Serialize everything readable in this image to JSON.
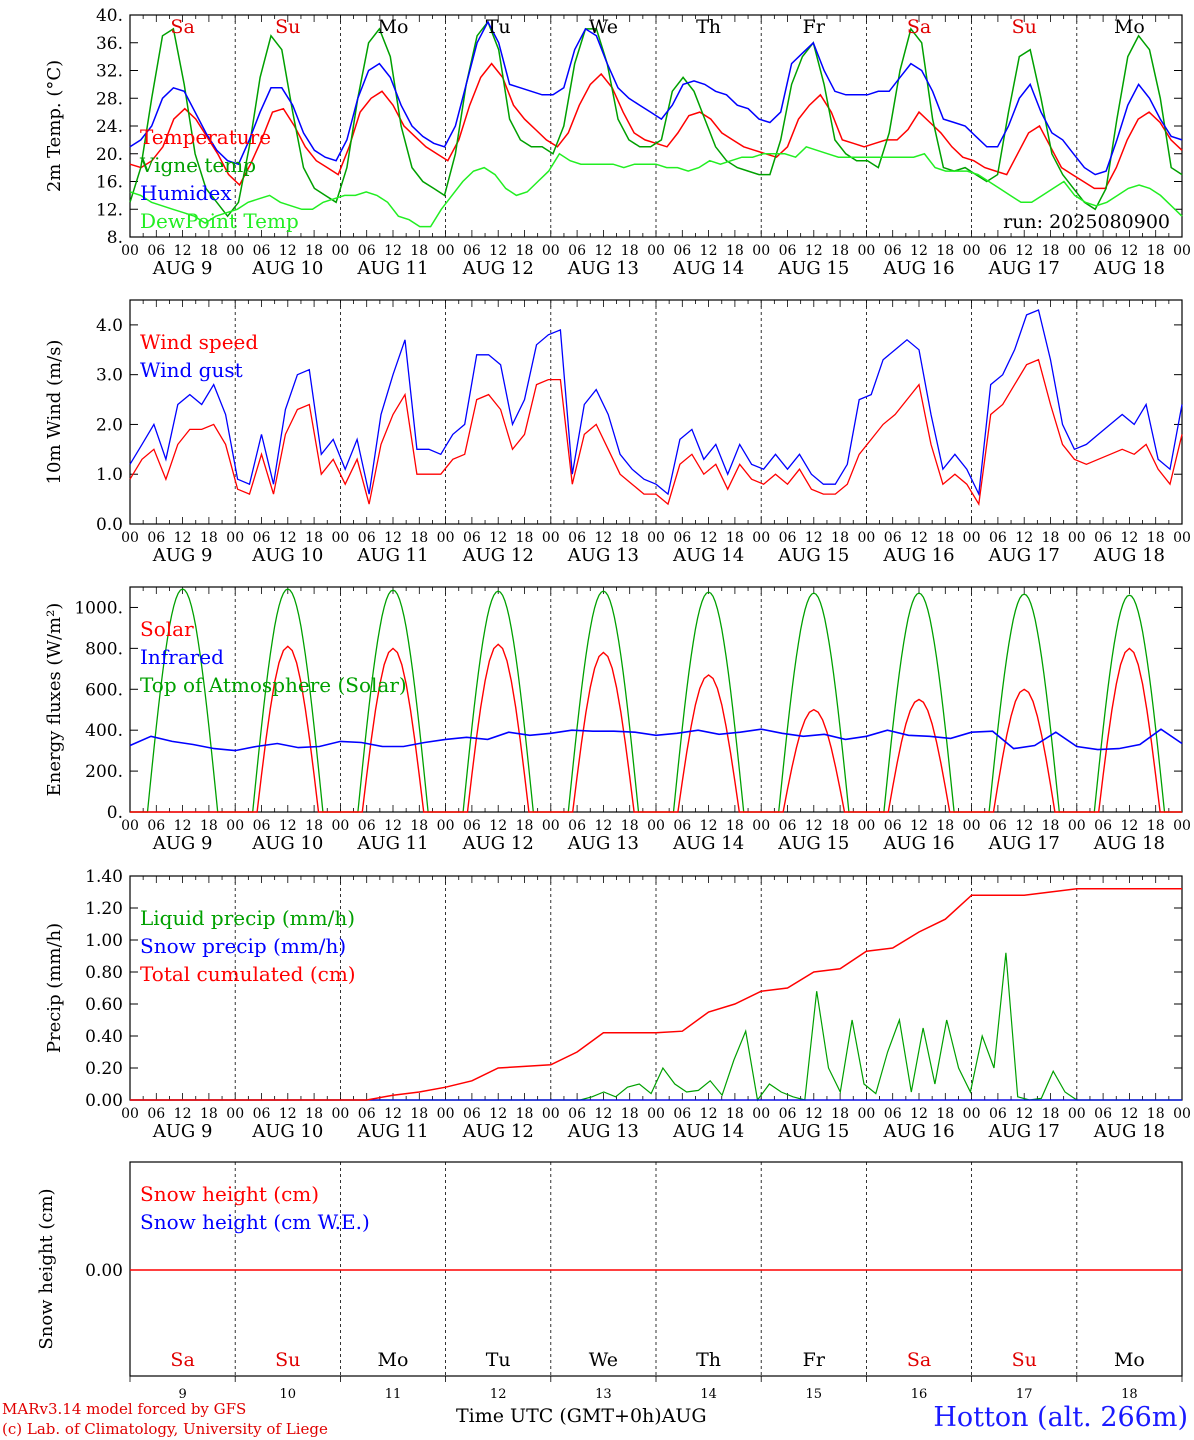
{
  "chart_data": [
    {
      "type": "line",
      "ylabel": "2m Temp. (°C)",
      "ylim": [
        8,
        40
      ],
      "yticks": [
        "8.",
        "12.",
        "16.",
        "20.",
        "24.",
        "28.",
        "32.",
        "36.",
        "40."
      ],
      "annotation": "run: 2025080900",
      "day_labels": [
        "Sa",
        "Su",
        "Mo",
        "Tu",
        "We",
        "Th",
        "Fr",
        "Sa",
        "Su",
        "Mo"
      ],
      "x_hours": "0..240 every 6h (Aug 9 00 UTC to Aug 19 00 UTC)",
      "series": [
        {
          "name": "Temperature",
          "color": "#ff0000",
          "values": [
            18.5,
            18,
            19,
            21,
            25,
            26.5,
            25,
            22.5,
            20,
            17,
            15.5,
            18.5,
            22,
            26,
            26.5,
            24,
            21,
            19,
            18,
            17,
            21,
            26,
            28,
            29,
            27,
            24,
            22.5,
            21,
            20,
            19,
            22,
            27,
            31,
            33,
            31,
            27,
            25,
            23.5,
            22,
            21,
            23,
            27,
            30,
            31.5,
            29.5,
            26,
            23,
            22,
            21.5,
            21,
            23,
            25.5,
            26,
            25,
            23,
            22,
            21,
            20.5,
            20,
            19.5,
            21,
            25,
            27,
            28.5,
            26,
            22,
            21.5,
            21,
            21.5,
            22,
            22,
            23.5,
            26,
            24.5,
            23,
            21,
            19.5,
            19,
            18,
            17.5,
            17,
            20,
            23,
            24,
            21,
            18,
            17,
            16,
            15,
            15,
            18,
            22,
            25,
            26,
            24.5,
            22,
            20.5
          ]
        },
        {
          "name": "Vigne temp",
          "color": "#00a000",
          "values": [
            13,
            18,
            28,
            37,
            38,
            30,
            20,
            15,
            13,
            11,
            13,
            21,
            31,
            37,
            35,
            26,
            18,
            15,
            14,
            13,
            18,
            28,
            36,
            38,
            34,
            24,
            18,
            16,
            15,
            14,
            20,
            30,
            37,
            39,
            35,
            25,
            22,
            21,
            21,
            20,
            24,
            33,
            38,
            38,
            33,
            25,
            22,
            21,
            21,
            22,
            29,
            31,
            29,
            25,
            21,
            19,
            18,
            17.5,
            17,
            17,
            22,
            30,
            34,
            36,
            30,
            22,
            20,
            19,
            19,
            18,
            23,
            32,
            38,
            36,
            25,
            18,
            17.5,
            18,
            17,
            16,
            17,
            26,
            34,
            35,
            28,
            20,
            17,
            15,
            13,
            12,
            15,
            25,
            34,
            37,
            35,
            28,
            18,
            17
          ]
        },
        {
          "name": "Humidex",
          "color": "#0000ff",
          "values": [
            21,
            22,
            24,
            28,
            29.5,
            29,
            26,
            23,
            20.5,
            19,
            18.5,
            22,
            26,
            29.5,
            29.5,
            27,
            23,
            20.5,
            19.5,
            19,
            22,
            28,
            32,
            33,
            31,
            27,
            24,
            22.5,
            21.5,
            21,
            24,
            30,
            36,
            39,
            36,
            30,
            29.5,
            29,
            28.5,
            28.5,
            29.5,
            35,
            38,
            37,
            33,
            29.5,
            28,
            27,
            26,
            25,
            27,
            30,
            30.5,
            30,
            29,
            28.5,
            27,
            26.5,
            25,
            24.5,
            26,
            33,
            34.5,
            36,
            32,
            29,
            28.5,
            28.5,
            28.5,
            29,
            29,
            31,
            33,
            32,
            29,
            25,
            24.5,
            24,
            22.5,
            21,
            21,
            24,
            28,
            30,
            26,
            23,
            22,
            20,
            18,
            17,
            17.5,
            22,
            27,
            30,
            28,
            25,
            22.5,
            22
          ]
        },
        {
          "name": "DewPoint Temp",
          "color": "#22ee22",
          "values": [
            14.5,
            14,
            13,
            12.5,
            12,
            11.5,
            11,
            10,
            11,
            11.5,
            12,
            13,
            13.5,
            14,
            13,
            12.5,
            12,
            12,
            13,
            13.5,
            14,
            14,
            14.5,
            14,
            13,
            11,
            10.5,
            9.5,
            9.5,
            12,
            14,
            16,
            17.5,
            18,
            17,
            15,
            14,
            14.5,
            16,
            17.5,
            20,
            19,
            18.5,
            18.5,
            18.5,
            18.5,
            18,
            18.5,
            18.5,
            18.5,
            18,
            18,
            17.5,
            18,
            19,
            18.5,
            19,
            19.5,
            19.5,
            20,
            20,
            20,
            19.5,
            21,
            20.5,
            20,
            19.5,
            19.5,
            19.5,
            19.5,
            19.5,
            19.5,
            19.5,
            19.5,
            20,
            18,
            17.5,
            17.5,
            17.5,
            17,
            16,
            15,
            14,
            13,
            13,
            14,
            15,
            16,
            14,
            13,
            12.5,
            13,
            14,
            15,
            15.5,
            15,
            14,
            12.5,
            11
          ]
        }
      ]
    },
    {
      "type": "line",
      "ylabel": "10m Wind (m/s)",
      "ylim": [
        0,
        4.5
      ],
      "yticks": [
        "0.0",
        "1.0",
        "2.0",
        "3.0",
        "4.0"
      ],
      "series": [
        {
          "name": "Wind speed",
          "color": "#ff0000",
          "values": [
            0.9,
            1.3,
            1.5,
            0.9,
            1.6,
            1.9,
            1.9,
            2.0,
            1.6,
            0.7,
            0.6,
            1.4,
            0.6,
            1.8,
            2.3,
            2.4,
            1.0,
            1.3,
            0.8,
            1.3,
            0.4,
            1.6,
            2.2,
            2.6,
            1.0,
            1.0,
            1.0,
            1.3,
            1.4,
            2.5,
            2.6,
            2.3,
            1.5,
            1.8,
            2.8,
            2.9,
            2.9,
            0.8,
            1.8,
            2.0,
            1.5,
            1.0,
            0.8,
            0.6,
            0.6,
            0.4,
            1.2,
            1.4,
            1.0,
            1.2,
            0.7,
            1.2,
            0.9,
            0.8,
            1.0,
            0.8,
            1.1,
            0.7,
            0.6,
            0.6,
            0.8,
            1.4,
            1.7,
            2.0,
            2.2,
            2.5,
            2.8,
            1.6,
            0.8,
            1.0,
            0.8,
            0.4,
            2.2,
            2.4,
            2.8,
            3.2,
            3.3,
            2.4,
            1.6,
            1.3,
            1.2,
            1.3,
            1.4,
            1.5,
            1.4,
            1.6,
            1.1,
            0.8,
            1.8
          ]
        },
        {
          "name": "Wind gust",
          "color": "#0000ff",
          "values": [
            1.2,
            1.6,
            2.0,
            1.3,
            2.4,
            2.6,
            2.4,
            2.8,
            2.2,
            0.9,
            0.8,
            1.8,
            0.8,
            2.3,
            3.0,
            3.1,
            1.4,
            1.7,
            1.1,
            1.7,
            0.6,
            2.2,
            3.0,
            3.7,
            1.5,
            1.5,
            1.4,
            1.8,
            2.0,
            3.4,
            3.4,
            3.2,
            2.0,
            2.5,
            3.6,
            3.8,
            3.9,
            1.0,
            2.4,
            2.7,
            2.2,
            1.4,
            1.1,
            0.9,
            0.8,
            0.6,
            1.7,
            1.9,
            1.3,
            1.6,
            1.0,
            1.6,
            1.2,
            1.1,
            1.4,
            1.1,
            1.4,
            1.0,
            0.8,
            0.8,
            1.2,
            2.5,
            2.6,
            3.3,
            3.5,
            3.7,
            3.5,
            2.2,
            1.1,
            1.4,
            1.1,
            0.6,
            2.8,
            3.0,
            3.5,
            4.2,
            4.3,
            3.3,
            2.0,
            1.5,
            1.6,
            1.8,
            2.0,
            2.2,
            2.0,
            2.4,
            1.3,
            1.1,
            2.4
          ]
        }
      ]
    },
    {
      "type": "line",
      "ylabel": "Energy fluxes (W/m²)",
      "ylim": [
        0,
        1100
      ],
      "yticks": [
        "0.",
        "200.",
        "400.",
        "600.",
        "800.",
        "1000."
      ],
      "series": [
        {
          "name": "Solar",
          "color": "#ff0000",
          "values": [
            0,
            0,
            0,
            100,
            790,
            810,
            780,
            800,
            790,
            820,
            800,
            800,
            780,
            760,
            700,
            670,
            600,
            440,
            500,
            470,
            480,
            550,
            480,
            400,
            330,
            580,
            600,
            770,
            800,
            780
          ],
          "note": "daily peak values per day, Aug 9..18 (Wh plotted as half-sine)"
        },
        {
          "name": "Infrared",
          "color": "#0000ff",
          "values": [
            325,
            370,
            345,
            330,
            310,
            300,
            320,
            335,
            315,
            320,
            345,
            340,
            320,
            320,
            340,
            355,
            365,
            355,
            390,
            375,
            385,
            400,
            395,
            395,
            390,
            375,
            385,
            400,
            380,
            390,
            405,
            385,
            370,
            380,
            355,
            370,
            400,
            375,
            370,
            360,
            390,
            395,
            310,
            325,
            390,
            320,
            305,
            310,
            330,
            405,
            335
          ]
        },
        {
          "name": "Top of Atmosphere (Solar)",
          "color": "#00a000",
          "values": [
            1090,
            1090,
            1085,
            1080,
            1080,
            1075,
            1070,
            1070,
            1065,
            1060
          ]
        }
      ]
    },
    {
      "type": "line",
      "ylabel": "Precip (mm/h)",
      "ylim": [
        0,
        1.4
      ],
      "yticks": [
        "0.00",
        "0.20",
        "0.40",
        "0.60",
        "0.80",
        "1.00",
        "1.20",
        "1.40"
      ],
      "series": [
        {
          "name": "Liquid precip (mm/h)",
          "color": "#00a000",
          "values": [
            0,
            0,
            0.02,
            0.05,
            0.02,
            0.08,
            0.1,
            0.04,
            0.2,
            0.1,
            0.05,
            0.06,
            0.12,
            0.03,
            0.25,
            0.43,
            0,
            0.1,
            0.05,
            0.02,
            0,
            0.68,
            0.2,
            0.05,
            0.5,
            0.1,
            0.04,
            0.3,
            0.5,
            0.05,
            0.45,
            0.1,
            0.5,
            0.2,
            0.05,
            0.4,
            0.2,
            0.92,
            0.02,
            0,
            0.01,
            0.18,
            0.05,
            0
          ]
        },
        {
          "name": "Snow precip (mm/h)",
          "color": "#0000ff",
          "values": [
            0,
            0,
            0,
            0
          ]
        },
        {
          "name": "Total cumulated (cm)",
          "color": "#ff0000",
          "values": [
            0,
            0,
            0,
            0,
            0,
            0,
            0,
            0,
            0,
            0,
            0.03,
            0.05,
            0.08,
            0.12,
            0.2,
            0.21,
            0.22,
            0.3,
            0.42,
            0.42,
            0.42,
            0.43,
            0.55,
            0.6,
            0.68,
            0.7,
            0.8,
            0.82,
            0.93,
            0.95,
            1.05,
            1.13,
            1.28,
            1.28,
            1.28,
            1.3,
            1.32,
            1.32,
            1.32,
            1.32,
            1.32
          ]
        }
      ]
    },
    {
      "type": "line",
      "ylabel": "Snow height (cm)",
      "yticks": [
        "0.00"
      ],
      "series": [
        {
          "name": "Snow height (cm)",
          "color": "#ff0000",
          "values": [
            0,
            0
          ]
        },
        {
          "name": "Snow height (cm W.E.)",
          "color": "#0000ff",
          "values": [
            0,
            0
          ]
        }
      ]
    }
  ],
  "x_axis": {
    "hour_ticks": [
      "00",
      "06",
      "12",
      "18"
    ],
    "month_label": "AUG",
    "day_numbers": [
      "9",
      "10",
      "11",
      "12",
      "13",
      "14",
      "15",
      "16",
      "17",
      "18"
    ],
    "title": "Time UTC (GMT+0h)",
    "month_suffix": "AUG"
  },
  "footer": {
    "model": "MARv3.14 model forced by GFS",
    "credit": "(c) Lab. of Climatology, University of Liege",
    "station": "Hotton (alt. 266m)"
  },
  "colors": {
    "weekend": "#e00000",
    "weekday": "#000000"
  }
}
